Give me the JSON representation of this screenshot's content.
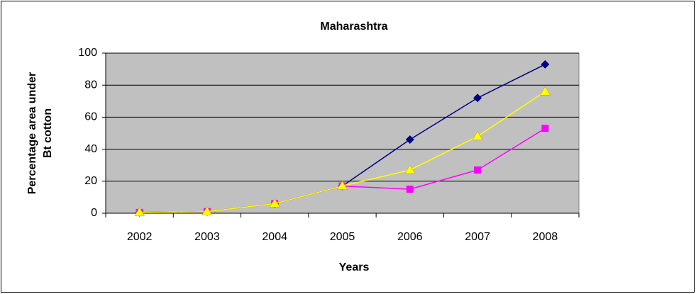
{
  "chart_data": {
    "type": "line",
    "title": "Maharashtra",
    "x_label": "Years",
    "y_label": [
      "Percentage area under",
      "Bt cotton"
    ],
    "categories": [
      "2002",
      "2003",
      "2004",
      "2005",
      "2006",
      "2007",
      "2008"
    ],
    "series": [
      {
        "color": "#000080",
        "marker": "diamond",
        "values": [
          0.5,
          1,
          6,
          17,
          46,
          72,
          93
        ]
      },
      {
        "color": "#ff00ff",
        "marker": "square",
        "values": [
          0.5,
          1,
          6,
          17,
          15,
          27,
          53
        ]
      },
      {
        "color": "#ffff00",
        "marker": "triangle",
        "values": [
          0.5,
          1,
          6,
          17,
          27,
          48,
          76
        ]
      }
    ],
    "ylim": [
      0,
      100
    ],
    "yticks": [
      0,
      20,
      40,
      60,
      80,
      100
    ],
    "grid": true,
    "plot_background": "#c0c0c0"
  }
}
